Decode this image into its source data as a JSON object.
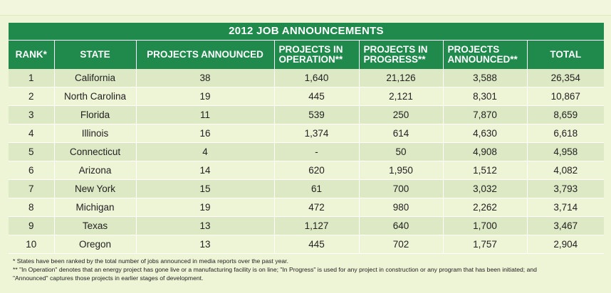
{
  "title": "2012 JOB ANNOUNCEMENTS",
  "columns": [
    "RANK*",
    "STATE",
    "PROJECTS ANNOUNCED",
    "PROJECTS IN OPERATION**",
    "PROJECTS IN PROGRESS**",
    "PROJECTS ANNOUNCED**",
    "TOTAL"
  ],
  "rows": [
    {
      "rank": "1",
      "state": "California",
      "projects": "38",
      "operation": "1,640",
      "progress": "21,126",
      "announced": "3,588",
      "total": "26,354"
    },
    {
      "rank": "2",
      "state": "North Carolina",
      "projects": "19",
      "operation": "445",
      "progress": "2,121",
      "announced": "8,301",
      "total": "10,867"
    },
    {
      "rank": "3",
      "state": "Florida",
      "projects": "11",
      "operation": "539",
      "progress": "250",
      "announced": "7,870",
      "total": "8,659"
    },
    {
      "rank": "4",
      "state": "Illinois",
      "projects": "16",
      "operation": "1,374",
      "progress": "614",
      "announced": "4,630",
      "total": "6,618"
    },
    {
      "rank": "5",
      "state": "Connecticut",
      "projects": "4",
      "operation": "-",
      "progress": "50",
      "announced": "4,908",
      "total": "4,958"
    },
    {
      "rank": "6",
      "state": "Arizona",
      "projects": "14",
      "operation": "620",
      "progress": "1,950",
      "announced": "1,512",
      "total": "4,082"
    },
    {
      "rank": "7",
      "state": "New York",
      "projects": "15",
      "operation": "61",
      "progress": "700",
      "announced": "3,032",
      "total": "3,793"
    },
    {
      "rank": "8",
      "state": "Michigan",
      "projects": "19",
      "operation": "472",
      "progress": "980",
      "announced": "2,262",
      "total": "3,714"
    },
    {
      "rank": "9",
      "state": "Texas",
      "projects": "13",
      "operation": "1,127",
      "progress": "640",
      "announced": "1,700",
      "total": "3,467"
    },
    {
      "rank": "10",
      "state": "Oregon",
      "projects": "13",
      "operation": "445",
      "progress": "702",
      "announced": "1,757",
      "total": "2,904"
    }
  ],
  "footnotes": [
    "* States have been ranked by the total number of jobs announced in media reports over the past year.",
    "** \"In Operation\" denotes that an energy project has gone live or a manufacturing facility is on line; \"In Progress\" is used for any project in construction or any program that has been initiated; and",
    "\"Announced\" captures those projects in earlier stages of development."
  ],
  "colors": {
    "header_green": "#1f8a4c",
    "row_dark": "#dde9c4",
    "row_light": "#eef4d6"
  }
}
